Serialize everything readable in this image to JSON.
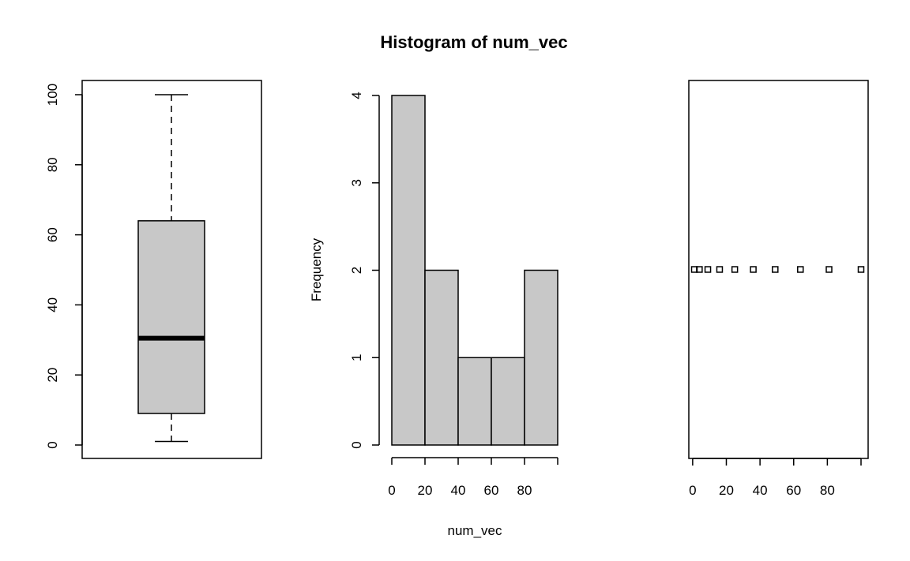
{
  "title": "Histogram of num_vec",
  "chart_data": [
    {
      "type": "boxplot",
      "title": "",
      "xlabel": "",
      "ylabel": "",
      "ylim": [
        0,
        100
      ],
      "yticks": [
        0,
        20,
        40,
        60,
        80,
        100
      ],
      "min": 1,
      "q1": 9,
      "median": 30.5,
      "q3": 64,
      "max": 100,
      "fill": "#c8c8c8",
      "grid": false
    },
    {
      "type": "bar",
      "title": "Histogram of num_vec",
      "xlabel": "num_vec",
      "ylabel": "Frequency",
      "bins": [
        [
          0,
          20
        ],
        [
          20,
          40
        ],
        [
          40,
          60
        ],
        [
          60,
          80
        ],
        [
          80,
          100
        ]
      ],
      "values": [
        4,
        2,
        1,
        1,
        2
      ],
      "xlim": [
        0,
        100
      ],
      "ylim": [
        0,
        4
      ],
      "xticks": [
        0,
        20,
        40,
        60,
        80
      ],
      "yticks": [
        0,
        1,
        2,
        3,
        4
      ],
      "fill": "#c8c8c8",
      "grid": false
    },
    {
      "type": "scatter",
      "title": "",
      "xlabel": "",
      "ylabel": "",
      "marker": "open-square",
      "x": [
        1,
        4,
        9,
        16,
        25,
        36,
        49,
        64,
        81,
        100
      ],
      "y": [
        2,
        2,
        2,
        2,
        2,
        2,
        2,
        2,
        2,
        2
      ],
      "xlim": [
        1,
        100
      ],
      "ylim": [
        0,
        4
      ],
      "xticks": [
        0,
        20,
        40,
        60,
        80
      ],
      "grid": false
    }
  ]
}
